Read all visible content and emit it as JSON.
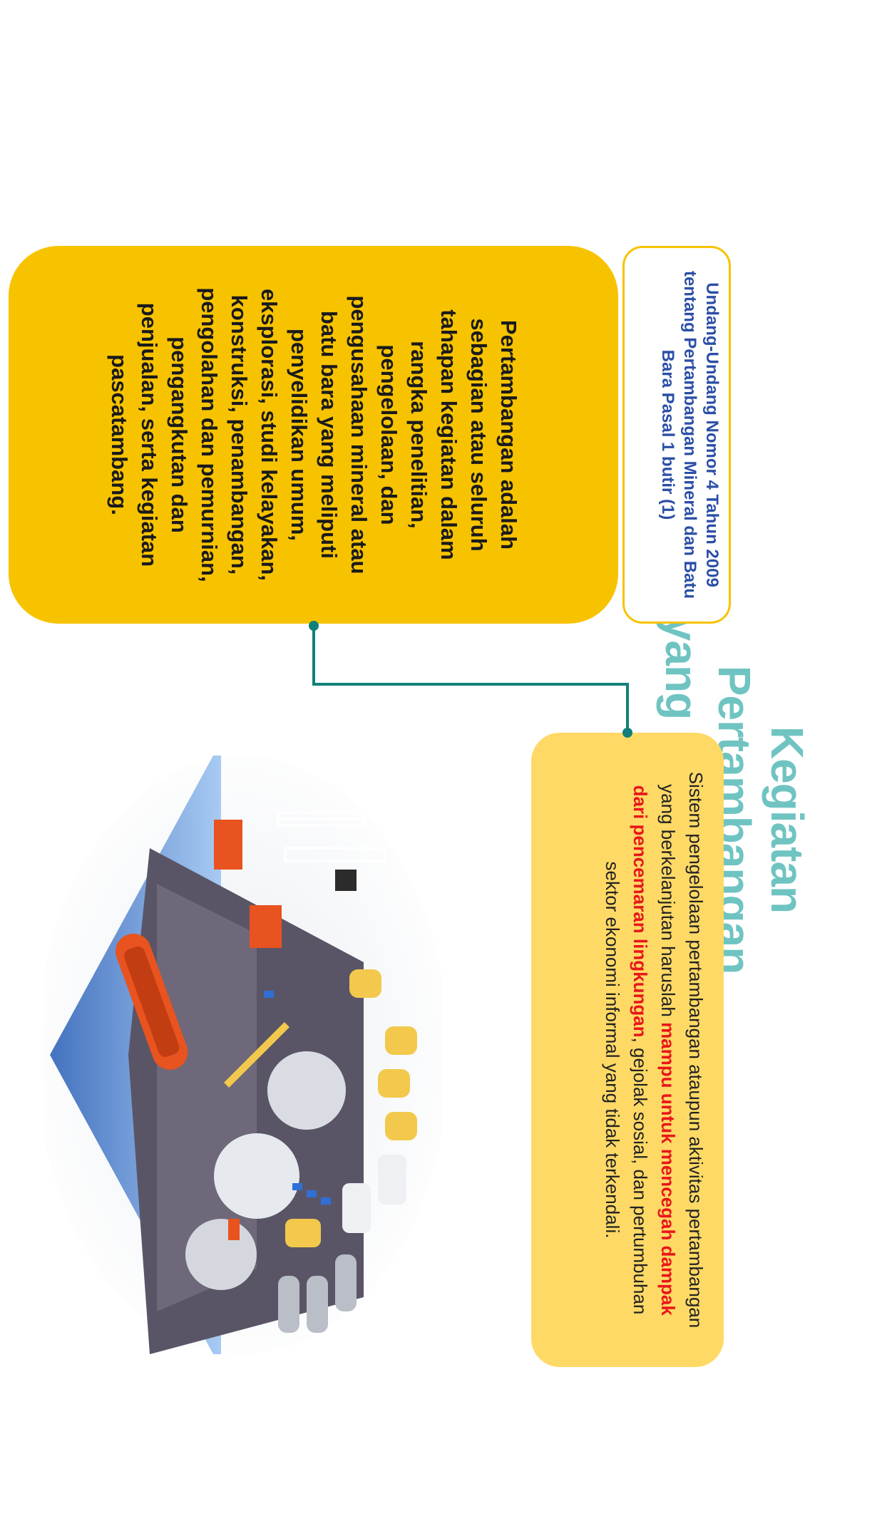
{
  "title": {
    "line1": "Kegiatan Pertambangan",
    "line2": "yang Berkelanjutan"
  },
  "system": {
    "text_before": "Sistem pengelolaan pertambangan ataupun aktivitas pertambangan yang berkelanjutan haruslah ",
    "highlight": "mampu untuk mencegah dampak dari pencemaran lingkungan",
    "text_after": ", gejolak sosial, dan pertumbuhan sektor ekonomi informal yang tidak terkendali."
  },
  "law": {
    "text": "Undang-Undang Nomor 4 Tahun 2009 tentang Pertambangan Mineral dan Batu Bara Pasal 1 butir (1)"
  },
  "definition": {
    "text": "Pertambangan adalah sebagian atau seluruh tahapan kegiatan dalam rangka penelitian, pengelolaan, dan pengusahaan mineral atau batu bara yang meliputi penyelidikan umum, eksplorasi, studi kelayakan, konstruksi, penambangan, pengolahan dan pemurnian, pengangkutan dan penjualan, serta kegiatan pascatambang."
  },
  "colors": {
    "title": "#6fc4c2",
    "system_card": "#ffd966",
    "definition_card": "#f7c300",
    "law_text": "#2b4fa6",
    "highlight": "#e8161b",
    "connector": "#12807a"
  },
  "illustration": {
    "icon": "mining-plant-illustration"
  }
}
